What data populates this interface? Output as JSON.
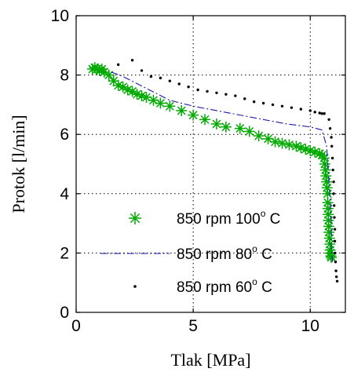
{
  "chart_data": {
    "type": "scatter",
    "xlabel": "Tlak [MPa]",
    "ylabel": "Protok [l/min]",
    "xlim": [
      0,
      11.5
    ],
    "ylim": [
      0,
      10
    ],
    "xticks": [
      0,
      5,
      10
    ],
    "yticks": [
      0,
      2,
      4,
      6,
      8,
      10
    ],
    "grid": true,
    "legend_position": "bottom-right",
    "series": [
      {
        "name": "850 rpm 100",
        "name_sup": "o",
        "name_suffix": " C",
        "marker": "asterisk",
        "color": "#00aa00",
        "x": [
          0.7,
          0.8,
          0.9,
          1.0,
          1.1,
          1.2,
          1.4,
          1.6,
          1.8,
          2.0,
          2.2,
          2.4,
          2.6,
          2.8,
          3.0,
          3.3,
          3.6,
          4.0,
          4.5,
          5.0,
          5.5,
          6.0,
          6.4,
          7.0,
          7.4,
          7.8,
          8.2,
          8.5,
          8.8,
          9.1,
          9.4,
          9.6,
          9.8,
          10.0,
          10.2,
          10.4,
          10.5,
          10.6,
          10.62,
          10.65,
          10.67,
          10.7,
          10.72,
          10.74,
          10.75,
          10.76,
          10.77,
          10.78,
          10.79,
          10.8,
          10.82,
          10.84,
          10.85,
          10.86,
          10.88,
          10.9
        ],
        "y": [
          8.2,
          8.25,
          8.2,
          8.15,
          8.2,
          8.1,
          8.0,
          7.8,
          7.65,
          7.6,
          7.5,
          7.45,
          7.35,
          7.3,
          7.25,
          7.15,
          7.05,
          6.95,
          6.8,
          6.65,
          6.5,
          6.35,
          6.25,
          6.2,
          6.1,
          5.95,
          5.85,
          5.75,
          5.7,
          5.65,
          5.6,
          5.55,
          5.5,
          5.45,
          5.4,
          5.35,
          5.3,
          5.2,
          5.0,
          4.8,
          4.6,
          4.4,
          4.2,
          4.0,
          3.7,
          3.5,
          3.3,
          3.1,
          2.9,
          2.7,
          2.5,
          2.3,
          2.1,
          2.0,
          1.9,
          1.85
        ]
      },
      {
        "name": "850 rpm 80",
        "name_sup": "o",
        "name_suffix": " C",
        "marker": "dash-dot",
        "color": "#1a1ab0",
        "x": [
          1.5,
          2.0,
          2.5,
          3.0,
          3.5,
          4.0,
          5.0,
          6.0,
          7.0,
          8.0,
          9.0,
          10.0,
          10.5,
          10.7,
          10.75,
          10.8,
          10.85,
          10.9,
          10.9,
          10.95
        ],
        "y": [
          8.1,
          7.95,
          7.75,
          7.55,
          7.35,
          7.15,
          6.95,
          6.8,
          6.65,
          6.5,
          6.35,
          6.25,
          6.15,
          5.6,
          5.0,
          4.4,
          3.8,
          3.0,
          2.2,
          1.7
        ]
      },
      {
        "name": "850 rpm 60",
        "name_sup": "o",
        "name_suffix": " C",
        "marker": "dot",
        "color": "#000000",
        "x": [
          1.8,
          2.4,
          2.8,
          3.2,
          3.6,
          4.0,
          4.4,
          4.8,
          5.2,
          5.6,
          6.0,
          6.4,
          6.8,
          7.2,
          7.6,
          8.0,
          8.4,
          8.8,
          9.2,
          9.6,
          10.0,
          10.2,
          10.4,
          10.5,
          10.6,
          10.8,
          10.85,
          10.9,
          10.92,
          10.95,
          10.97,
          11.0,
          11.0,
          11.02,
          11.03,
          11.05,
          11.05,
          11.06,
          11.08,
          11.1,
          11.12,
          11.15
        ],
        "y": [
          8.35,
          8.5,
          8.15,
          7.95,
          7.9,
          7.8,
          7.7,
          7.6,
          7.5,
          7.45,
          7.4,
          7.35,
          7.3,
          7.2,
          7.1,
          7.05,
          7.0,
          6.95,
          6.9,
          6.85,
          6.8,
          6.75,
          6.72,
          6.7,
          6.7,
          6.5,
          6.2,
          5.9,
          5.6,
          5.2,
          4.8,
          4.4,
          4.0,
          3.6,
          3.2,
          2.8,
          2.4,
          2.0,
          1.7,
          1.4,
          1.2,
          1.05
        ]
      }
    ]
  }
}
